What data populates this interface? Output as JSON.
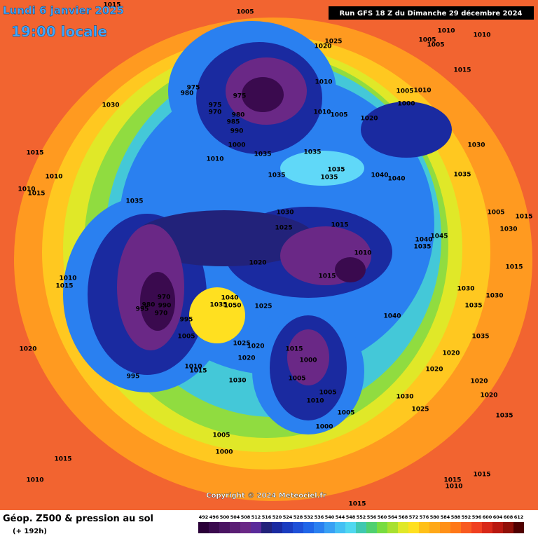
{
  "header": {
    "date": "Lundi 6 janvier 2025",
    "time": "19:00 locale",
    "run": "Run GFS 18 Z du Dimanche 29 décembre 2024"
  },
  "map": {
    "copyright": "Copyright © 2024 Meteociel.fr",
    "pressure_labels": [
      "1015",
      "1005",
      "1030",
      "1015",
      "1010",
      "1010",
      "1015",
      "1035",
      "975",
      "980",
      "975",
      "975",
      "970",
      "980",
      "985",
      "990",
      "1000",
      "1010",
      "1035",
      "1035",
      "1035",
      "1035",
      "1035",
      "1025",
      "1020",
      "1010",
      "1010",
      "1005",
      "1020",
      "1005",
      "1010",
      "1000",
      "1010",
      "1010",
      "1005",
      "1005",
      "1015",
      "1030",
      "1035",
      "1040",
      "1040",
      "1030",
      "1025",
      "1015",
      "1010",
      "1015",
      "1020",
      "1025",
      "1005",
      "1030",
      "1015",
      "1045",
      "1040",
      "1035",
      "1015",
      "1030",
      "1030",
      "1035",
      "1040",
      "1035",
      "1020",
      "1020",
      "1020",
      "1020",
      "1030",
      "1025",
      "1010",
      "1015",
      "1020",
      "995",
      "1005",
      "1000",
      "1015",
      "1010",
      "1015",
      "1010",
      "1015",
      "1035",
      "1015",
      "1000",
      "1005",
      "1005",
      "1010",
      "1005",
      "1000",
      "1015",
      "1020",
      "1025",
      "1020",
      "1030",
      "1010",
      "1015",
      "1005",
      "995",
      "995",
      "980",
      "970",
      "970",
      "990",
      "1040",
      "1050",
      "1035"
    ]
  },
  "legend": {
    "title": "Géop. Z500 & pression au sol",
    "lead": "(+ 192h)",
    "levels": [
      492,
      496,
      500,
      504,
      508,
      512,
      516,
      520,
      524,
      528,
      532,
      536,
      540,
      544,
      548,
      552,
      556,
      560,
      564,
      568,
      572,
      576,
      580,
      584,
      588,
      592,
      596,
      600,
      604,
      608,
      612
    ],
    "colors": [
      "#2a0038",
      "#3a0a4e",
      "#4a1462",
      "#5a1e74",
      "#6a2886",
      "#5a2a9a",
      "#22227a",
      "#1a2aa0",
      "#1a3cc0",
      "#1e50d8",
      "#2066e8",
      "#2a80f0",
      "#38a0f4",
      "#44c0f4",
      "#50d8f0",
      "#40c8b0",
      "#50d070",
      "#78dc40",
      "#a8e030",
      "#e0e828",
      "#ffe020",
      "#ffc018",
      "#ffa818",
      "#ff9018",
      "#ff7818",
      "#f85a20",
      "#f04020",
      "#d82818",
      "#b81810",
      "#901008",
      "#500000"
    ]
  }
}
